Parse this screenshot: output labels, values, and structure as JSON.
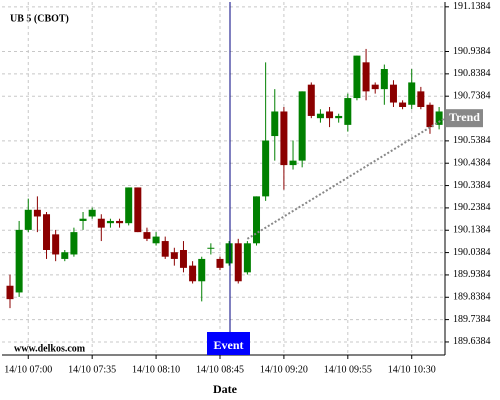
{
  "chart_data": {
    "type": "candlestick",
    "title": "UB 5 (CBOT)",
    "x_label": "Date",
    "watermark": "www.delkos.com",
    "categories": [
      null,
      null,
      "14/10 07:00",
      null,
      null,
      null,
      null,
      null,
      null,
      "14/10 07:35",
      null,
      null,
      null,
      null,
      null,
      null,
      "14/10 08:10",
      null,
      null,
      null,
      null,
      null,
      null,
      "14/10 08:45",
      null,
      null,
      null,
      null,
      null,
      null,
      "14/10 09:20",
      null,
      null,
      null,
      null,
      null,
      null,
      "14/10 09:55",
      null,
      null,
      null,
      null,
      null,
      null,
      "14/10 10:30",
      null,
      null,
      null
    ],
    "open": [
      189.89,
      189.86,
      190.14,
      190.23,
      190.21,
      190.12,
      190.01,
      190.03,
      190.18,
      190.2,
      190.19,
      190.17,
      190.18,
      190.17,
      190.33,
      190.13,
      190.08,
      190.09,
      190.04,
      190.05,
      189.98,
      189.91,
      190.06,
      190.01,
      189.99,
      190.08,
      189.95,
      190.08,
      190.29,
      190.56,
      190.67,
      190.43,
      190.45,
      190.79,
      190.64,
      190.67,
      190.64,
      190.61,
      190.73,
      190.89,
      190.79,
      190.77,
      190.79,
      190.71,
      190.7,
      190.76,
      190.7,
      190.61
    ],
    "high": [
      189.94,
      190.18,
      190.28,
      190.29,
      190.22,
      190.14,
      190.05,
      190.15,
      190.22,
      190.24,
      190.21,
      190.19,
      190.19,
      190.33,
      190.33,
      190.15,
      190.13,
      190.11,
      190.06,
      190.09,
      190.0,
      190.02,
      190.08,
      190.02,
      190.09,
      190.1,
      190.09,
      190.29,
      190.89,
      190.77,
      190.69,
      190.54,
      190.76,
      190.8,
      190.68,
      190.69,
      190.66,
      190.75,
      190.92,
      190.95,
      190.8,
      190.88,
      190.81,
      190.72,
      190.86,
      190.78,
      190.71,
      190.69
    ],
    "low": [
      189.79,
      189.84,
      190.13,
      190.13,
      190.01,
      190.0,
      190.0,
      190.02,
      190.14,
      190.19,
      190.09,
      190.15,
      190.15,
      190.16,
      190.13,
      190.09,
      190.07,
      190.01,
      189.98,
      189.95,
      189.9,
      189.82,
      190.03,
      189.96,
      189.98,
      189.9,
      189.94,
      190.07,
      190.27,
      190.45,
      190.32,
      190.41,
      190.42,
      190.64,
      190.62,
      190.6,
      190.62,
      190.58,
      190.72,
      190.72,
      190.75,
      190.7,
      190.69,
      190.68,
      190.68,
      190.68,
      190.57,
      190.59
    ],
    "close": [
      189.83,
      190.14,
      190.23,
      190.2,
      190.05,
      190.03,
      190.04,
      190.13,
      190.19,
      190.23,
      190.15,
      190.18,
      190.17,
      190.33,
      190.13,
      190.1,
      190.11,
      190.02,
      190.01,
      189.97,
      189.91,
      190.01,
      190.06,
      189.97,
      190.08,
      189.91,
      190.08,
      190.29,
      190.54,
      190.67,
      190.43,
      190.45,
      190.76,
      190.65,
      190.66,
      190.64,
      190.65,
      190.73,
      190.92,
      190.76,
      190.77,
      190.86,
      190.71,
      190.69,
      190.8,
      190.69,
      190.6,
      190.67
    ],
    "up_color": "#008000",
    "down_color": "#8b0000",
    "ylim": [
      189.58,
      191.16
    ],
    "yticks": [
      191.1384,
      190.9384,
      190.8384,
      190.7384,
      190.5384,
      190.4384,
      190.3384,
      190.2384,
      190.1384,
      190.0384,
      189.9384,
      189.8384,
      189.7384,
      189.6384
    ],
    "grid": true,
    "event_label": "Event",
    "trend": {
      "label": "Trend",
      "start": 190.1,
      "end": 190.64
    }
  }
}
